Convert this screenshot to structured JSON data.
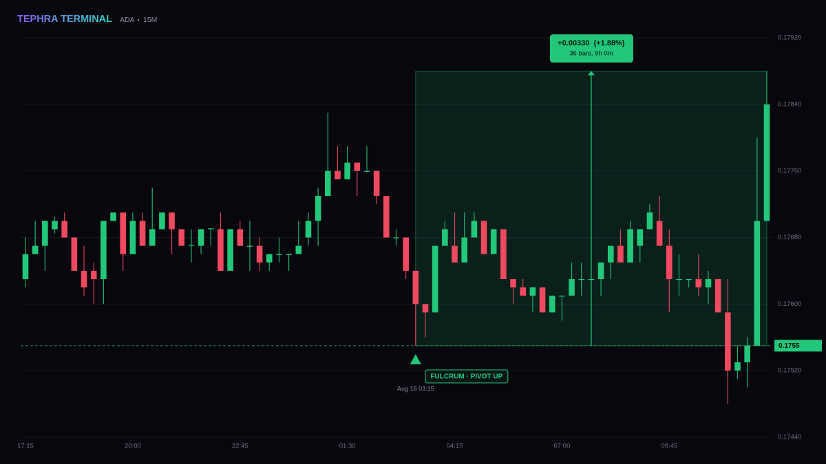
{
  "header": {
    "title": "TEPHRA TERMINAL",
    "symbol": "ADA",
    "interval": "15M"
  },
  "chart_data": {
    "type": "candlestick",
    "categories": [
      "17:15",
      null,
      null,
      null,
      null,
      null,
      null,
      null,
      null,
      null,
      null,
      "20:00",
      null,
      null,
      null,
      null,
      null,
      null,
      null,
      null,
      null,
      null,
      "22:45",
      null,
      null,
      null,
      null,
      null,
      null,
      null,
      null,
      null,
      null,
      "01:30",
      null,
      null,
      null,
      null,
      null,
      null,
      null,
      null,
      null,
      null,
      "04:15",
      null,
      null,
      null,
      null,
      null,
      null,
      null,
      null,
      null,
      null,
      "07:00",
      null,
      null,
      null,
      null,
      null,
      null,
      null,
      null,
      null,
      null,
      "09:45",
      null,
      null,
      null,
      null,
      null,
      null,
      null,
      null,
      null,
      null
    ],
    "open": [
      0.1763,
      0.1766,
      0.1767,
      0.1769,
      0.177,
      0.1768,
      0.1764,
      0.1764,
      0.1763,
      0.177,
      0.1771,
      0.1766,
      0.177,
      0.1767,
      0.1769,
      0.1771,
      0.1769,
      0.1767,
      0.1767,
      0.1769,
      0.1769,
      0.1764,
      0.1769,
      0.17669,
      0.1767,
      0.1765,
      0.17659,
      0.17659,
      0.1766,
      0.1768,
      0.177,
      0.1773,
      0.1776,
      0.1775,
      0.1777,
      0.17759,
      0.1776,
      0.1773,
      0.17679,
      0.1768,
      0.1764,
      0.176,
      0.1759,
      0.1767,
      0.1767,
      0.1765,
      0.1768,
      0.177,
      0.1766,
      0.1769,
      0.1763,
      0.1762,
      0.1761,
      0.1762,
      0.1759,
      0.17609,
      0.1761,
      0.17629,
      0.17629,
      0.1763,
      0.1765,
      0.1767,
      0.1765,
      0.1767,
      0.1769,
      0.177,
      0.1767,
      0.17629,
      0.17629,
      0.1763,
      0.1762,
      0.1763,
      0.1759,
      0.1752,
      0.1753,
      0.1755,
      0.177
    ],
    "high": [
      0.1768,
      0.177,
      0.177,
      0.17705,
      0.1771,
      0.1768,
      0.1767,
      0.1765,
      0.177,
      0.1771,
      0.1771,
      0.1771,
      0.1771,
      0.1774,
      0.1771,
      0.1771,
      0.1769,
      0.1769,
      0.1769,
      0.1769,
      0.1771,
      0.1769,
      0.177,
      0.177,
      0.1768,
      0.1766,
      0.1768,
      0.1766,
      0.177,
      0.1771,
      0.1774,
      0.1783,
      0.1779,
      0.1779,
      0.1777,
      0.1779,
      0.1776,
      0.1773,
      0.1769,
      0.1768,
      0.1764,
      0.176,
      0.1767,
      0.177,
      0.1771,
      0.1771,
      0.1771,
      0.177,
      0.1769,
      0.1769,
      0.1763,
      0.1763,
      0.1762,
      0.1762,
      0.1761,
      0.1761,
      0.1765,
      0.1765,
      0.1763,
      0.1765,
      0.1767,
      0.1769,
      0.177,
      0.1769,
      0.1772,
      0.1773,
      0.1769,
      0.1766,
      0.1763,
      0.1766,
      0.1764,
      0.1763,
      0.1763,
      0.1755,
      0.1756,
      0.178,
      0.1788
    ],
    "low": [
      0.1762,
      0.1766,
      0.1764,
      0.17685,
      0.1768,
      0.1764,
      0.1761,
      0.176,
      0.176,
      0.177,
      0.1764,
      0.1766,
      0.1767,
      0.1767,
      0.1769,
      0.1766,
      0.1767,
      0.1765,
      0.1766,
      0.1767,
      0.1764,
      0.1764,
      0.1767,
      0.1764,
      0.1764,
      0.1764,
      0.1765,
      0.1764,
      0.1766,
      0.1767,
      0.1767,
      0.1773,
      0.1775,
      0.1775,
      0.1773,
      0.1776,
      0.1772,
      0.1768,
      0.1767,
      0.1763,
      0.1755,
      0.1756,
      0.1759,
      0.1767,
      0.1765,
      0.1765,
      0.1768,
      0.1766,
      0.1766,
      0.1763,
      0.176,
      0.1761,
      0.1759,
      0.1759,
      0.1759,
      0.1758,
      0.1761,
      0.1761,
      0.1763,
      0.1761,
      0.1763,
      0.1765,
      0.1765,
      0.1765,
      0.1769,
      0.1767,
      0.1759,
      0.1761,
      0.1762,
      0.1761,
      0.176,
      0.1759,
      0.1748,
      0.1751,
      0.175,
      0.1755,
      0.177
    ],
    "close": [
      0.1766,
      0.1767,
      0.177,
      0.177,
      0.1768,
      0.1764,
      0.1762,
      0.1763,
      0.177,
      0.1771,
      0.1766,
      0.177,
      0.1767,
      0.1769,
      0.1771,
      0.1769,
      0.1767,
      0.17671,
      0.1769,
      0.17691,
      0.1764,
      0.1769,
      0.1767,
      0.1767,
      0.1765,
      0.1766,
      0.1766,
      0.1766,
      0.1767,
      0.177,
      0.1773,
      0.1776,
      0.1775,
      0.1777,
      0.1776,
      0.1776,
      0.1773,
      0.1768,
      0.1768,
      0.1764,
      0.176,
      0.1759,
      0.1767,
      0.1769,
      0.1765,
      0.1768,
      0.177,
      0.1766,
      0.1769,
      0.1763,
      0.1762,
      0.1761,
      0.1762,
      0.1759,
      0.1761,
      0.1761,
      0.1763,
      0.1763,
      0.1763,
      0.1765,
      0.1767,
      0.1765,
      0.1769,
      0.1769,
      0.1771,
      0.1767,
      0.1763,
      0.1763,
      0.1763,
      0.1762,
      0.1763,
      0.1759,
      0.1752,
      0.1753,
      0.1755,
      0.177,
      0.1784
    ],
    "up_color": "#22c77a",
    "down_color": "#ef4a60",
    "ylim": [
      0.1744,
      0.1792
    ],
    "yticks": [
      {
        "value": 0.1792,
        "label": "0.17920"
      },
      {
        "value": 0.1784,
        "label": "0.17840"
      },
      {
        "value": 0.1776,
        "label": "0.17760"
      },
      {
        "value": 0.1768,
        "label": "0.17680"
      },
      {
        "value": 0.176,
        "label": "0.17600"
      },
      {
        "value": 0.1752,
        "label": "0.17520"
      },
      {
        "value": 0.1744,
        "label": "0.17440"
      }
    ],
    "grid": true,
    "pivot": {
      "level": 0.1755,
      "label": "FULCRUM · PIVOT UP",
      "time": "Aug 16 03:15"
    },
    "measure": {
      "change": "+0.00330  (+1.88%)",
      "detail": "36 bars, 9h 0m"
    }
  }
}
